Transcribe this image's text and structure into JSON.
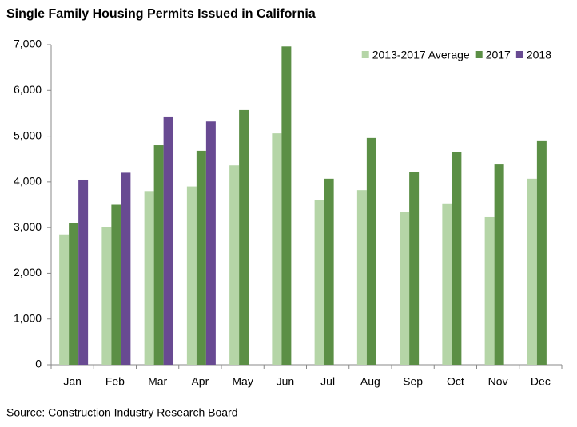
{
  "chart_data": {
    "type": "bar",
    "title": "Single Family Housing Permits Issued in California",
    "source": "Source: Construction Industry Research Board",
    "categories": [
      "Jan",
      "Feb",
      "Mar",
      "Apr",
      "May",
      "Jun",
      "Jul",
      "Aug",
      "Sep",
      "Oct",
      "Nov",
      "Dec"
    ],
    "series": [
      {
        "name": "2013-2017 Average",
        "color": "#b5d5a7",
        "values": [
          2850,
          3020,
          3800,
          3900,
          4360,
          5060,
          3600,
          3820,
          3350,
          3530,
          3230,
          4070
        ]
      },
      {
        "name": "2017",
        "color": "#5b8f45",
        "values": [
          3100,
          3500,
          4800,
          4680,
          5570,
          6960,
          4070,
          4960,
          4220,
          4660,
          4380,
          4890
        ]
      },
      {
        "name": "2018",
        "color": "#684a92",
        "values": [
          4050,
          4200,
          5430,
          5320,
          null,
          null,
          null,
          null,
          null,
          null,
          null,
          null
        ]
      }
    ],
    "ylim": [
      0,
      7000
    ],
    "yticks": [
      0,
      {
        "value": 1000,
        "label": "1,000"
      },
      {
        "value": 2000,
        "label": "2,000"
      },
      {
        "value": 3000,
        "label": "3,000"
      },
      {
        "value": 4000,
        "label": "4,000"
      },
      {
        "value": 5000,
        "label": "5,000"
      },
      {
        "value": 6000,
        "label": "6,000"
      },
      {
        "value": 7000,
        "label": "7,000"
      }
    ],
    "grid": false,
    "legend": "upper right"
  }
}
